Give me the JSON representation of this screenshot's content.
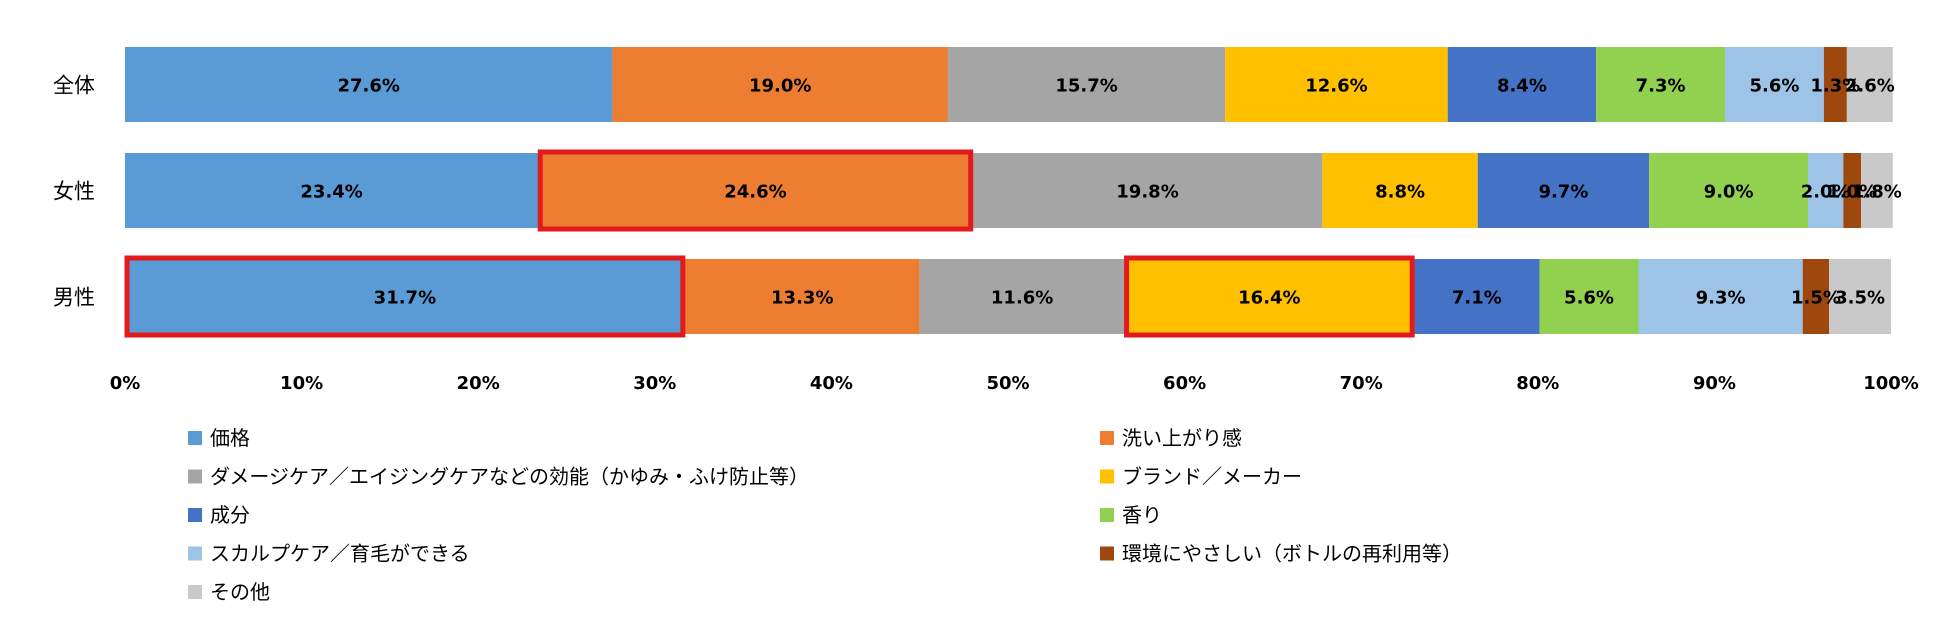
{
  "chart_data": {
    "type": "bar",
    "orientation": "horizontal",
    "stacked": true,
    "percent": true,
    "categories": [
      "全体",
      "女性",
      "男性"
    ],
    "series": [
      {
        "name": "価格",
        "color": "#5B9BD5",
        "values": [
          27.6,
          23.4,
          31.7
        ]
      },
      {
        "name": "洗い上がり感",
        "color": "#ED7D31",
        "values": [
          19.0,
          24.6,
          13.3
        ]
      },
      {
        "name": "ダメージケア／エイジングケアなどの効能（かゆみ・ふけ防止等）",
        "color": "#A5A5A5",
        "values": [
          15.7,
          19.8,
          11.6
        ]
      },
      {
        "name": "ブランド／メーカー",
        "color": "#FFC000",
        "values": [
          12.6,
          8.8,
          16.4
        ]
      },
      {
        "name": "成分",
        "color": "#4472C4",
        "values": [
          8.4,
          9.7,
          7.1
        ]
      },
      {
        "name": "香り",
        "color": "#92D050",
        "values": [
          7.3,
          9.0,
          5.6
        ]
      },
      {
        "name": "スカルプケア／育毛ができる",
        "color": "#9DC3E6",
        "values": [
          5.6,
          2.0,
          9.3
        ]
      },
      {
        "name": "環境にやさしい（ボトルの再利用等）",
        "color": "#9E480E",
        "values": [
          1.3,
          1.0,
          1.5
        ]
      },
      {
        "name": "その他",
        "color": "#C9C9C9",
        "values": [
          2.6,
          1.8,
          3.5
        ]
      }
    ],
    "xlim": [
      0,
      100
    ],
    "xticks": [
      "0%",
      "10%",
      "20%",
      "30%",
      "40%",
      "50%",
      "60%",
      "70%",
      "80%",
      "90%",
      "100%"
    ],
    "grid": false,
    "legend_position": "bottom",
    "highlight_color": "#E31A1C",
    "highlights": [
      {
        "category": "女性",
        "series": "洗い上がり感"
      },
      {
        "category": "男性",
        "series": "価格"
      },
      {
        "category": "男性",
        "series": "ブランド／メーカー"
      }
    ]
  }
}
